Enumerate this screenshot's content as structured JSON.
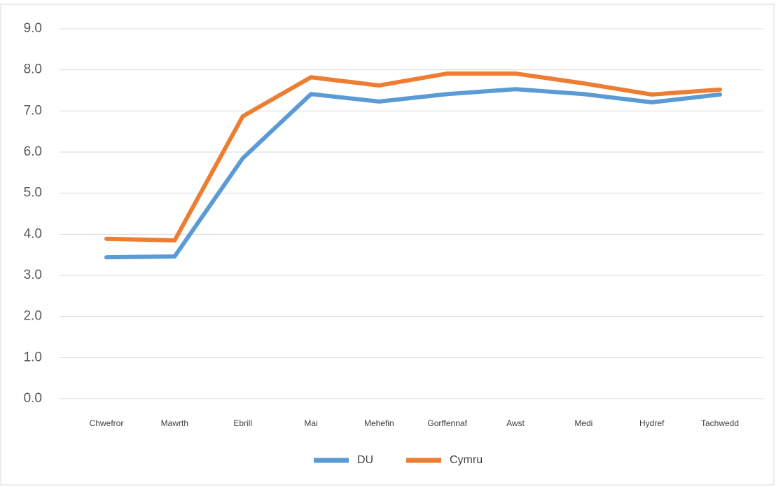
{
  "chart_data": {
    "type": "line",
    "categories": [
      "Chwefror",
      "Mawrth",
      "Ebrill",
      "Mai",
      "Mehefin",
      "Gorffennaf",
      "Awst",
      "Medi",
      "Hydref",
      "Tachwedd"
    ],
    "series": [
      {
        "name": "DU",
        "color": "#5b9bd5",
        "values": [
          3.44,
          3.46,
          5.85,
          7.41,
          7.23,
          7.41,
          7.53,
          7.41,
          7.21,
          7.4
        ]
      },
      {
        "name": "Cymru",
        "color": "#ed7d31",
        "values": [
          3.89,
          3.85,
          6.87,
          7.82,
          7.62,
          7.91,
          7.91,
          7.67,
          7.4,
          7.52
        ]
      }
    ],
    "ylim": [
      0,
      9
    ],
    "yticks": [
      {
        "value": 0,
        "label": "0.0"
      },
      {
        "value": 1,
        "label": "1.0"
      },
      {
        "value": 2,
        "label": "2.0"
      },
      {
        "value": 3,
        "label": "3.0"
      },
      {
        "value": 4,
        "label": "4.0"
      },
      {
        "value": 5,
        "label": "5.0"
      },
      {
        "value": 6,
        "label": "6.0"
      },
      {
        "value": 7,
        "label": "7.0"
      },
      {
        "value": 8,
        "label": "8.0"
      },
      {
        "value": 9,
        "label": "9.0"
      }
    ],
    "grid": true,
    "legend": "bottom"
  }
}
